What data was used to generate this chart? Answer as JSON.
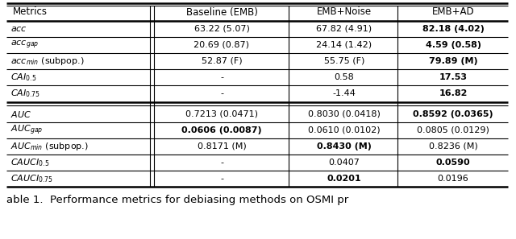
{
  "columns": [
    "Metrics",
    "Baseline (EMB)",
    "EMB+Noise",
    "EMB+AD"
  ],
  "rows": [
    {
      "metric": "acc",
      "subscript": null,
      "extra": null,
      "values": [
        "63.22 (5.07)",
        "67.82 (4.91)",
        "82.18 (4.02)"
      ],
      "bold": [
        false,
        false,
        true
      ],
      "section_break": false
    },
    {
      "metric": "acc",
      "subscript": "gap",
      "extra": null,
      "values": [
        "20.69 (0.87)",
        "24.14 (1.42)",
        "4.59 (0.58)"
      ],
      "bold": [
        false,
        false,
        true
      ],
      "section_break": false
    },
    {
      "metric": "acc",
      "subscript": "min",
      "extra": "(subpop.)",
      "values": [
        "52.87 (F)",
        "55.75 (F)",
        "79.89 (M)"
      ],
      "bold": [
        false,
        false,
        true
      ],
      "section_break": false
    },
    {
      "metric": "CAI",
      "subscript": "0.5",
      "extra": null,
      "values": [
        "-",
        "0.58",
        "17.53"
      ],
      "bold": [
        false,
        false,
        true
      ],
      "section_break": false
    },
    {
      "metric": "CAI",
      "subscript": "0.75",
      "extra": null,
      "values": [
        "-",
        "-1.44",
        "16.82"
      ],
      "bold": [
        false,
        false,
        true
      ],
      "section_break": false
    },
    {
      "metric": "AUC",
      "subscript": null,
      "extra": null,
      "values": [
        "0.7213 (0.0471)",
        "0.8030 (0.0418)",
        "0.8592 (0.0365)"
      ],
      "bold": [
        false,
        false,
        true
      ],
      "section_break": true
    },
    {
      "metric": "AUC",
      "subscript": "gap",
      "extra": null,
      "values": [
        "0.0606 (0.0087)",
        "0.0610 (0.0102)",
        "0.0805 (0.0129)"
      ],
      "bold": [
        true,
        false,
        false
      ],
      "section_break": false
    },
    {
      "metric": "AUC",
      "subscript": "min",
      "extra": "(subpop.)",
      "values": [
        "0.8171 (M)",
        "0.8430 (M)",
        "0.8236 (M)"
      ],
      "bold": [
        false,
        true,
        false
      ],
      "section_break": false
    },
    {
      "metric": "CAUCI",
      "subscript": "0.5",
      "extra": null,
      "values": [
        "-",
        "0.0407",
        "0.0590"
      ],
      "bold": [
        false,
        false,
        true
      ],
      "section_break": false
    },
    {
      "metric": "CAUCI",
      "subscript": "0.75",
      "extra": null,
      "values": [
        "-",
        "0.0201",
        "0.0196"
      ],
      "bold": [
        false,
        true,
        false
      ],
      "section_break": false
    }
  ],
  "caption": "able 1.  Performance metrics for debiasing methods on OSMI pr",
  "background": "#ffffff",
  "text_color": "#000000",
  "fontsize": 8.0,
  "header_fontsize": 8.5
}
